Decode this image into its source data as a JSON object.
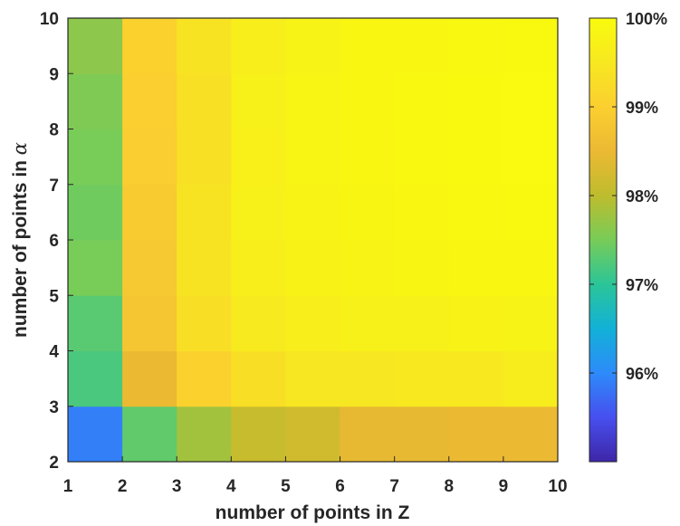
{
  "chart_data": {
    "type": "heatmap",
    "xlabel": "number of points in Z",
    "ylabel_text": "number of points in ",
    "ylabel_symbol": "α",
    "x_edges": [
      1,
      2,
      3,
      4,
      5,
      6,
      7,
      8,
      9,
      10
    ],
    "y_edges": [
      2,
      3,
      4,
      5,
      6,
      7,
      8,
      9,
      10
    ],
    "x_ticks": [
      "1",
      "2",
      "3",
      "4",
      "5",
      "6",
      "7",
      "8",
      "9",
      "10"
    ],
    "y_ticks": [
      "2",
      "3",
      "4",
      "5",
      "6",
      "7",
      "8",
      "9",
      "10"
    ],
    "rows_bottom_to_top": [
      [
        95.9,
        97.35,
        97.8,
        98.1,
        98.2,
        98.45,
        98.45,
        98.5,
        98.5
      ],
      [
        97.2,
        98.5,
        99.05,
        99.3,
        99.45,
        99.45,
        99.5,
        99.5,
        99.6
      ],
      [
        97.3,
        98.8,
        99.3,
        99.55,
        99.65,
        99.7,
        99.7,
        99.75,
        99.78
      ],
      [
        97.5,
        98.85,
        99.4,
        99.65,
        99.75,
        99.8,
        99.85,
        99.88,
        99.9
      ],
      [
        97.45,
        98.9,
        99.4,
        99.7,
        99.8,
        99.85,
        99.9,
        99.92,
        99.95
      ],
      [
        97.5,
        98.95,
        99.35,
        99.72,
        99.82,
        99.88,
        99.92,
        99.95,
        99.97
      ],
      [
        97.55,
        99.0,
        99.35,
        99.7,
        99.82,
        99.9,
        99.93,
        99.96,
        99.98
      ],
      [
        97.65,
        99.05,
        99.4,
        99.65,
        99.78,
        99.88,
        99.9,
        99.92,
        99.95
      ]
    ],
    "colorbar": {
      "colormap": "parula",
      "range": [
        95,
        100
      ],
      "ticks": [
        96,
        97,
        98,
        99,
        100
      ],
      "tick_labels": [
        "96%",
        "97%",
        "98%",
        "99%",
        "100%"
      ]
    }
  }
}
